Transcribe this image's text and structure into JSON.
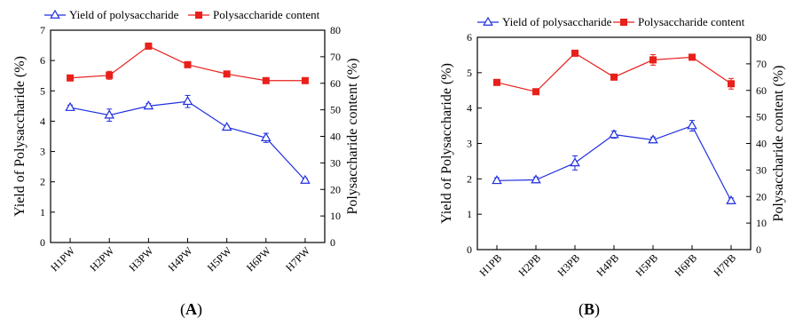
{
  "colors": {
    "yield": "#1f2fe0",
    "content": "#e8201b",
    "axis": "#000000"
  },
  "chart_data": [
    {
      "type": "line",
      "panel_label": {
        "open": "(",
        "letter": "A",
        "close": ")"
      },
      "categories": [
        "H1PW",
        "H2PW",
        "H3PW",
        "H4PW",
        "H5PW",
        "H6PW",
        "H7PW"
      ],
      "ylabel_left": "Yield of Polysaccharide (%)",
      "ylabel_right": "Polysaccharide content (%)",
      "ylim_left": [
        0,
        7
      ],
      "ylim_right": [
        0,
        80
      ],
      "yticks_left": [
        "0",
        "1",
        "2",
        "3",
        "4",
        "5",
        "6",
        "7"
      ],
      "yticks_right": [
        "0",
        "10",
        "20",
        "30",
        "40",
        "50",
        "60",
        "70",
        "80"
      ],
      "grid": false,
      "legend_position": "top",
      "series": [
        {
          "name": "Yield of polysaccharide",
          "axis": "left",
          "marker": "open-triangle",
          "values": [
            4.45,
            4.2,
            4.5,
            4.65,
            3.8,
            3.45,
            2.05
          ],
          "errors": [
            0.08,
            0.2,
            0.08,
            0.2,
            0.06,
            0.15,
            0.06
          ]
        },
        {
          "name": "Polysaccharide content",
          "axis": "right",
          "marker": "filled-square",
          "values": [
            62,
            63,
            74,
            67,
            63.5,
            61,
            61
          ],
          "errors": [
            0.5,
            1.5,
            0.6,
            0.5,
            0.5,
            0.4,
            0.4
          ]
        }
      ]
    },
    {
      "type": "line",
      "panel_label": {
        "open": "(",
        "letter": "B",
        "close": ")"
      },
      "categories": [
        "H1PB",
        "H2PB",
        "H3PB",
        "H4PB",
        "H5PB",
        "H6PB",
        "H7PB"
      ],
      "ylabel_left": "Yield of Polysaccharide (%)",
      "ylabel_right": "Polysaccharide content (%)",
      "ylim_left": [
        0,
        6
      ],
      "ylim_right": [
        0,
        80
      ],
      "yticks_left": [
        "0",
        "1",
        "2",
        "3",
        "4",
        "5",
        "6"
      ],
      "yticks_right": [
        "0",
        "10",
        "20",
        "30",
        "40",
        "50",
        "60",
        "70",
        "80"
      ],
      "grid": false,
      "legend_position": "top",
      "series": [
        {
          "name": "Yield of polysaccharide",
          "axis": "left",
          "marker": "open-triangle",
          "values": [
            1.95,
            1.97,
            2.45,
            3.25,
            3.1,
            3.5,
            1.38
          ],
          "errors": [
            0.08,
            0.08,
            0.2,
            0.1,
            0.08,
            0.15,
            0.08
          ]
        },
        {
          "name": "Polysaccharide content",
          "axis": "right",
          "marker": "filled-square",
          "values": [
            63,
            59.5,
            74,
            65,
            71.5,
            72.5,
            62.5
          ],
          "errors": [
            0.6,
            0.6,
            0.5,
            0.6,
            2.0,
            1.0,
            2.0
          ]
        }
      ]
    }
  ]
}
